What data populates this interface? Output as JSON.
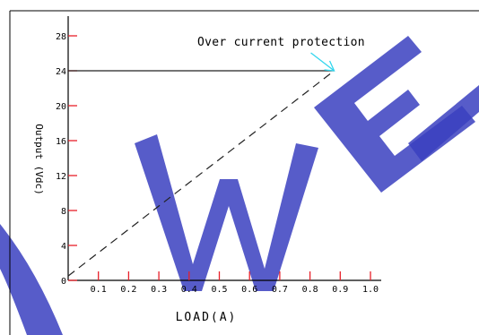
{
  "chart_data": {
    "type": "line",
    "title": "",
    "xlabel": "LOAD(A)",
    "ylabel": "Output (Vdc)",
    "xlim": [
      0,
      1.0
    ],
    "ylim": [
      0,
      28
    ],
    "x_ticks": [
      "0.1",
      "0.2",
      "0.3",
      "0.4",
      "0.5",
      "0.6",
      "0.7",
      "0.8",
      "0.9",
      "1.0"
    ],
    "y_ticks": [
      "0",
      "4",
      "8",
      "12",
      "16",
      "20",
      "24",
      "28"
    ],
    "series": [
      {
        "name": "",
        "style": "dashed",
        "x": [
          0.0,
          0.88
        ],
        "y": [
          0.5,
          24
        ]
      },
      {
        "name": "",
        "style": "solid",
        "x": [
          0.0,
          0.88
        ],
        "y": [
          24,
          24
        ]
      }
    ],
    "annotations": [
      {
        "text": "Over current protection",
        "x": 0.88,
        "y": 24,
        "arrow_color": "#33d6ee"
      }
    ],
    "grid": false,
    "colors": {
      "axis": "#000000",
      "tick_mark": "#e8202a",
      "line": "#222222",
      "arrow": "#33d6ee",
      "watermark": "#3a3fbf"
    },
    "watermark": "WEI"
  }
}
